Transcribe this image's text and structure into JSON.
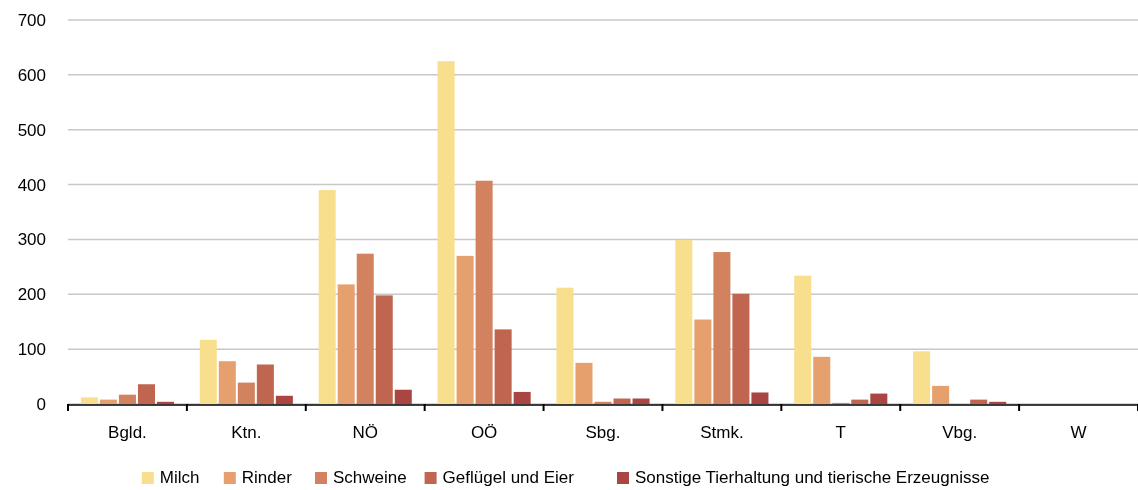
{
  "chart_data": {
    "type": "bar",
    "categories": [
      "Bgld.",
      "Ktn.",
      "NÖ",
      "OÖ",
      "Sbg.",
      "Stmk.",
      "T",
      "Vbg.",
      "W"
    ],
    "series": [
      {
        "name": "Milch",
        "color": "#f8df8e",
        "values": [
          12,
          117,
          390,
          625,
          212,
          299,
          234,
          96,
          0
        ]
      },
      {
        "name": "Rinder",
        "color": "#e5a06d",
        "values": [
          8,
          78,
          218,
          270,
          75,
          154,
          86,
          33,
          0
        ]
      },
      {
        "name": "Schweine",
        "color": "#d3825f",
        "values": [
          17,
          39,
          274,
          407,
          4,
          277,
          2,
          0,
          0
        ]
      },
      {
        "name": "Geflügel und Eier",
        "color": "#c0654f",
        "values": [
          36,
          72,
          198,
          136,
          10,
          201,
          8,
          8,
          0
        ]
      },
      {
        "name": "Sonstige Tierhaltung und tierische Erzeugnisse",
        "color": "#a94542",
        "values": [
          4,
          15,
          26,
          22,
          10,
          21,
          19,
          4,
          0
        ]
      }
    ],
    "ylim": [
      0,
      700
    ],
    "yticks": [
      0,
      100,
      200,
      300,
      400,
      500,
      600,
      700
    ],
    "grid": "y",
    "legend": "bottom"
  }
}
